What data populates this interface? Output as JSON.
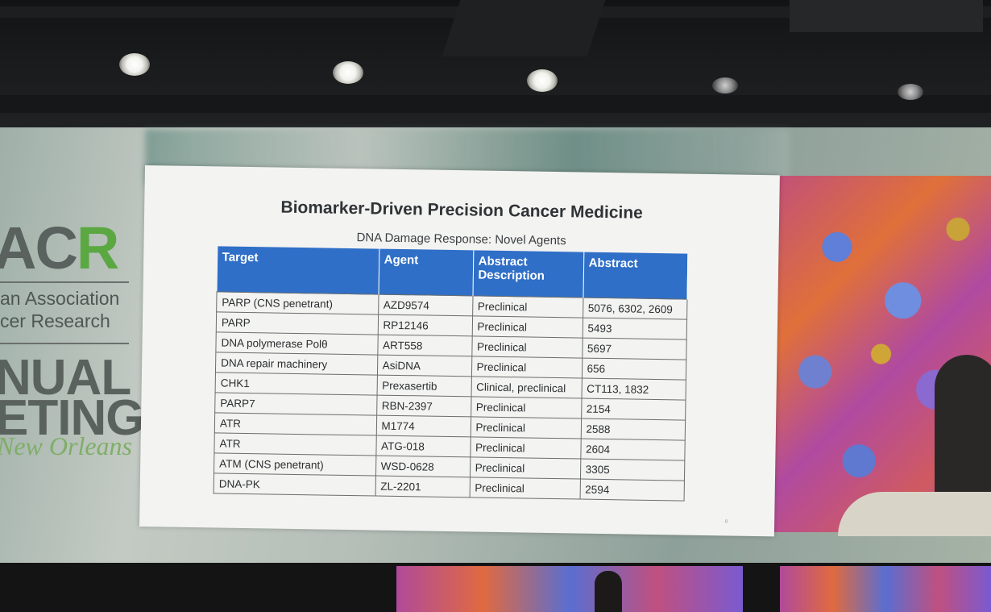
{
  "venue_logo": {
    "org_fragment_1": "AC",
    "org_fragment_2": "R",
    "assoc_line_1": "an Association",
    "assoc_line_2": "cer Research",
    "event_line_1": "NUAL",
    "event_line_2": "ETING",
    "city": "New Orleans",
    "accent_color": "#5ba843"
  },
  "slide": {
    "title": "Biomarker-Driven Precision Cancer Medicine",
    "subtitle": "DNA Damage Response: Novel Agents",
    "header_color": "#2f6fc7",
    "columns": [
      "Target",
      "Agent",
      "Abstract Description",
      "Abstract"
    ],
    "rows": [
      [
        "PARP (CNS penetrant)",
        "AZD9574",
        "Preclinical",
        "5076, 6302, 2609"
      ],
      [
        "PARP",
        "RP12146",
        "Preclinical",
        "5493"
      ],
      [
        "DNA polymerase Polθ",
        "ART558",
        "Preclinical",
        "5697"
      ],
      [
        "DNA repair machinery",
        "AsiDNA",
        "Preclinical",
        "656"
      ],
      [
        "CHK1",
        "Prexasertib",
        "Clinical, preclinical",
        "CT113, 1832"
      ],
      [
        "PARP7",
        "RBN-2397",
        "Preclinical",
        "2154"
      ],
      [
        "ATR",
        "M1774",
        "Preclinical",
        "2588"
      ],
      [
        "ATR",
        "ATG-018",
        "Preclinical",
        "2604"
      ],
      [
        "ATM (CNS penetrant)",
        "WSD-0628",
        "Preclinical",
        "3305"
      ],
      [
        "DNA-PK",
        "ZL-2201",
        "Preclinical",
        "2594"
      ]
    ],
    "page_number": "8"
  }
}
